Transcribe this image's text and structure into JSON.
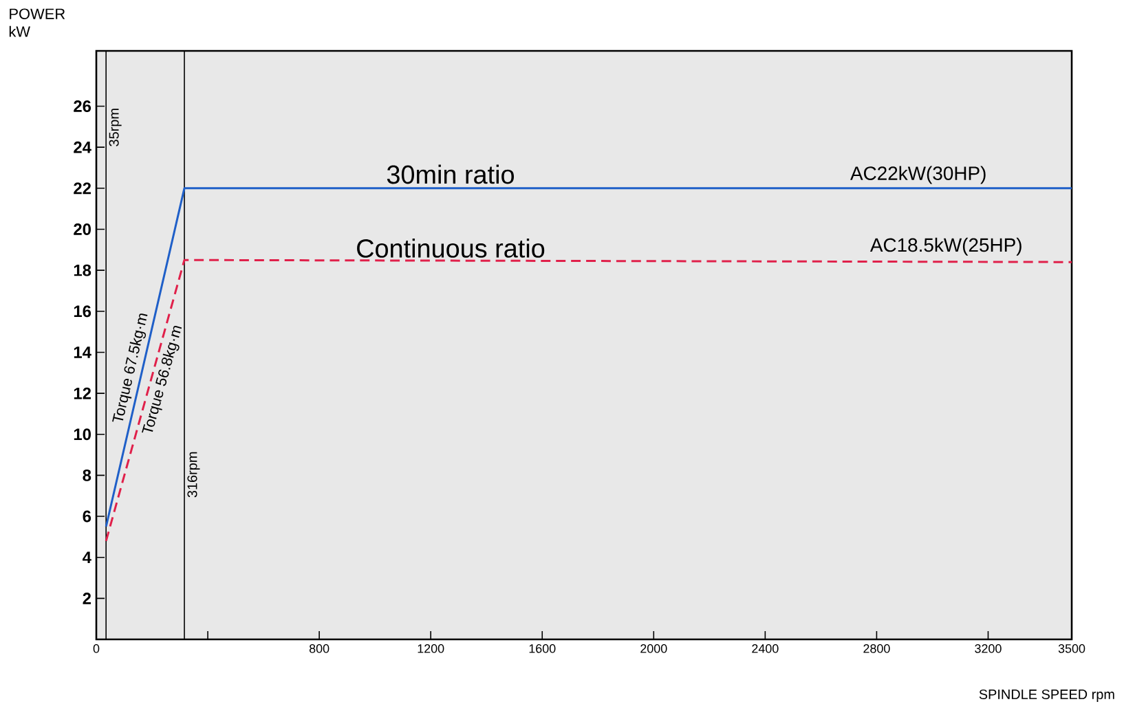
{
  "chart_data": {
    "type": "line",
    "xlabel": "SPINDLE SPEED rpm",
    "ylabel": "POWER\nkW",
    "xlim": [
      0,
      3500
    ],
    "ylim": [
      0,
      28.7
    ],
    "xticks": [
      0,
      {
        "value": 400,
        "label": null
      },
      800,
      1200,
      1600,
      2000,
      2400,
      2800,
      3200,
      3500
    ],
    "yticks": [
      2,
      4,
      6,
      8,
      10,
      12,
      14,
      16,
      18,
      20,
      22,
      24,
      26
    ],
    "grid": false,
    "legend": false,
    "marker": "none",
    "series": [
      {
        "name": "30min ratio",
        "color": "#1f5fc8",
        "line_style": "solid",
        "x": [
          35,
          316,
          3500
        ],
        "values": [
          5.5,
          22,
          22
        ]
      },
      {
        "name": "Continuous ratio",
        "color": "#e0204a",
        "line_style": "dashed",
        "x": [
          35,
          316,
          3500
        ],
        "values": [
          4.8,
          18.5,
          18.4
        ]
      }
    ],
    "ref_lines": [
      {
        "axis": "x",
        "value": 35,
        "label": "35rpm"
      },
      {
        "axis": "x",
        "value": 316,
        "label": "316rpm"
      }
    ],
    "annotations": [
      {
        "text": "AC22kW(30HP)",
        "x": 2950,
        "y": 22
      },
      {
        "text": "AC18.5kW(25HP)",
        "x": 3050,
        "y": 18.5
      },
      {
        "text": "Torque 67.5kg·m",
        "x": 165,
        "y": 13.1
      },
      {
        "text": "Torque 56.8kg·m",
        "x": 200,
        "y": 12.8
      }
    ]
  }
}
